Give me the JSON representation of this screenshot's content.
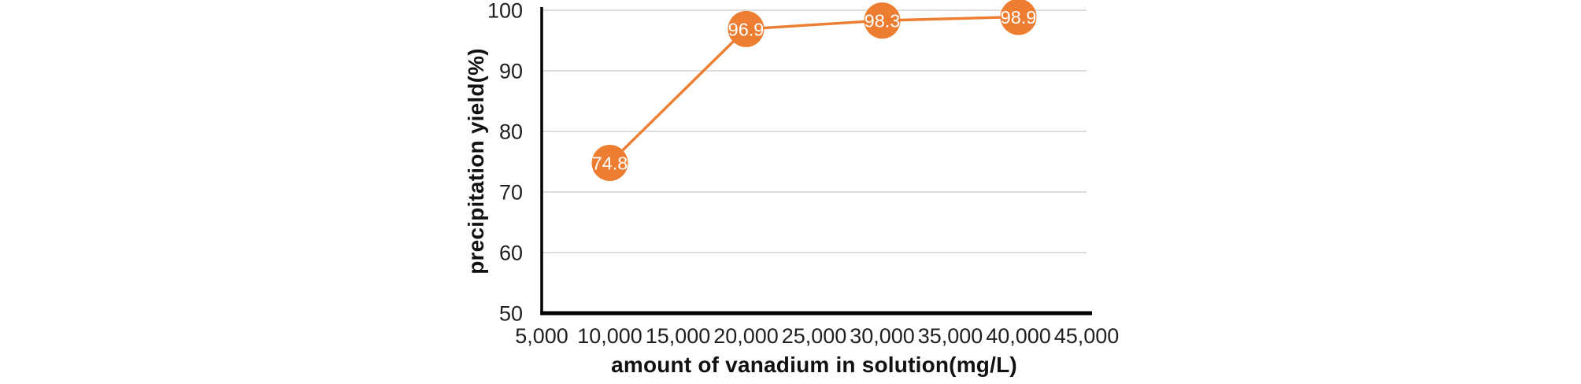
{
  "chart_data": {
    "type": "line",
    "title": "",
    "xlabel": "amount of vanadium in solution(mg/L)",
    "ylabel": "precipitation yield(%)",
    "x": [
      10000,
      20000,
      30000,
      40000
    ],
    "values": [
      74.8,
      96.9,
      98.3,
      98.9
    ],
    "data_labels": [
      "74.8",
      "96.9",
      "98.3",
      "98.9"
    ],
    "x_ticks": [
      "5,000",
      "10,000",
      "15,000",
      "20,000",
      "25,000",
      "30,000",
      "35,000",
      "40,000",
      "45,000"
    ],
    "x_tick_values": [
      5000,
      10000,
      15000,
      20000,
      25000,
      30000,
      35000,
      40000,
      45000
    ],
    "y_ticks": [
      "100",
      "90",
      "80",
      "70",
      "60",
      "50"
    ],
    "y_tick_values": [
      100,
      90,
      80,
      70,
      60,
      50
    ],
    "xlim": [
      5000,
      45000
    ],
    "ylim": [
      50,
      100
    ],
    "grid": "horizontal-only",
    "legend": "none",
    "marker_style": "filled-circle-with-inner-label",
    "series_color": "#ED7D31",
    "marker_label_color": "#FFFFFF",
    "gridline_color": "#D9D9D9",
    "axis_color": "#000000",
    "tick_label_color": "#1F1F1F"
  }
}
